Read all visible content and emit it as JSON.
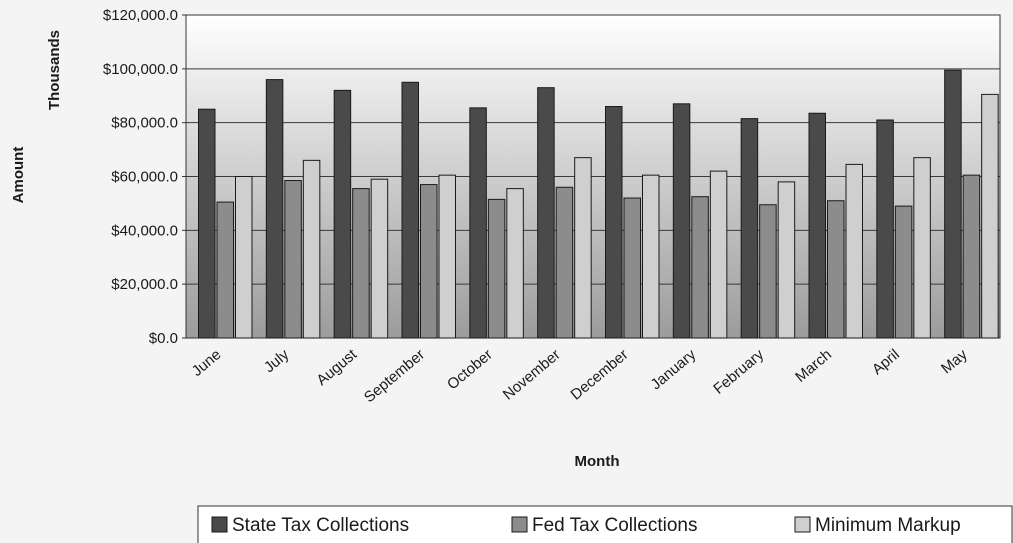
{
  "chart_data": {
    "type": "bar",
    "title": "",
    "xlabel": "Month",
    "ylabel": "Amount",
    "yunit_label": "Thousands",
    "ylim": [
      0,
      120000
    ],
    "yticks": [
      0,
      20000,
      40000,
      60000,
      80000,
      100000,
      120000
    ],
    "ytick_labels": [
      "$0.0",
      "$20,000.0",
      "$40,000.0",
      "$60,000.0",
      "$80,000.0",
      "$100,000.0",
      "$120,000.0"
    ],
    "grid": true,
    "legend_position": "bottom",
    "categories": [
      "June",
      "July",
      "August",
      "September",
      "October",
      "November",
      "December",
      "January",
      "February",
      "March",
      "April",
      "May"
    ],
    "series": [
      {
        "name": "State Tax Collections",
        "color": "#4a4a4a",
        "values": [
          85000,
          96000,
          92000,
          95000,
          85500,
          93000,
          86000,
          87000,
          81500,
          83500,
          81000,
          99500
        ]
      },
      {
        "name": "Fed Tax Collections",
        "color": "#8c8c8c",
        "values": [
          50500,
          58500,
          55500,
          57000,
          51500,
          56000,
          52000,
          52500,
          49500,
          51000,
          49000,
          60500
        ]
      },
      {
        "name": "Minimum Markup",
        "color": "#cfcfcf",
        "values": [
          60000,
          66000,
          59000,
          60500,
          55500,
          67000,
          60500,
          62000,
          58000,
          64500,
          67000,
          90500
        ]
      }
    ]
  }
}
